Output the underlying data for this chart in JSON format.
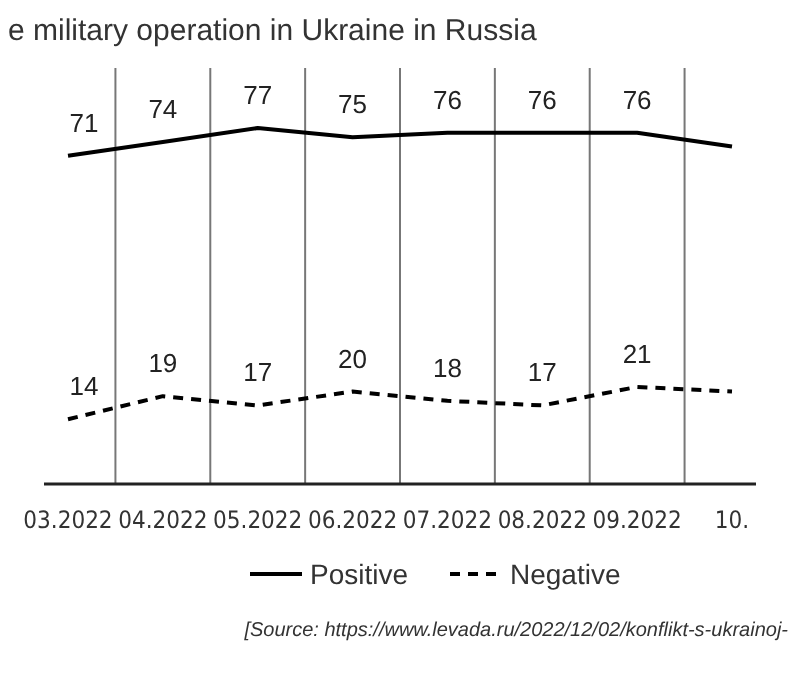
{
  "chart_data": {
    "type": "line",
    "title": "e military operation in Ukraine in Russia",
    "categories": [
      "03.2022",
      "04.2022",
      "05.2022",
      "06.2022",
      "07.2022",
      "08.2022",
      "09.2022",
      "10."
    ],
    "series": [
      {
        "name": "Positive",
        "color": "#000000",
        "line_style": "solid",
        "values": [
          71,
          74,
          77,
          75,
          76,
          76,
          76,
          73
        ],
        "value_labels": [
          "71",
          "74",
          "77",
          "75",
          "76",
          "76",
          "76",
          null
        ]
      },
      {
        "name": "Negative",
        "color": "#000000",
        "line_style": "dashed",
        "values": [
          14,
          19,
          17,
          20,
          18,
          17,
          21,
          20
        ],
        "value_labels": [
          "14",
          "19",
          "17",
          "20",
          "18",
          "17",
          "21",
          null
        ]
      }
    ],
    "ylim": [
      0,
      90
    ],
    "tick_labels": "x",
    "grid": "x",
    "legend": "bottom",
    "marker": "none",
    "annotations": [
      "[Source: https://www.levada.ru/2022/12/02/konflikt-s-ukrainoj-"
    ]
  }
}
